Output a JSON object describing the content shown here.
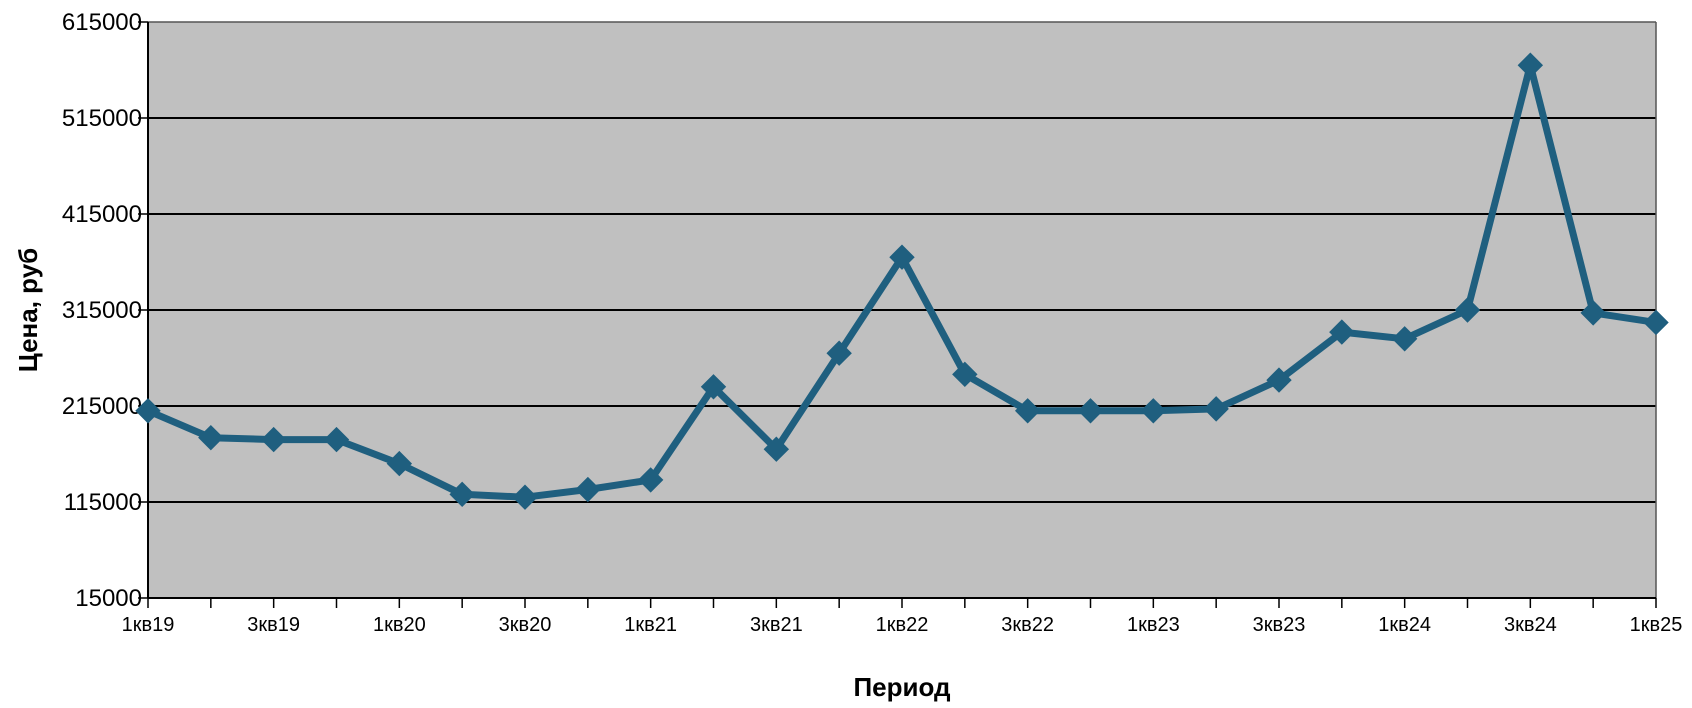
{
  "chart_data": {
    "type": "line",
    "title": "",
    "xlabel": "Период",
    "ylabel": "Цена, руб",
    "ylim": [
      15000,
      615000
    ],
    "yticks": [
      "615000",
      "515000",
      "415000",
      "315000",
      "215000",
      "115000",
      "15000"
    ],
    "xtick_labels": [
      "1кв19",
      "3кв19",
      "1кв20",
      "3кв20",
      "1кв21",
      "3кв21",
      "1кв22",
      "3кв22",
      "1кв23",
      "3кв23",
      "1кв24",
      "3кв24",
      "1кв25"
    ],
    "grid": true,
    "legend": "none",
    "series": [
      {
        "color": "#1f5f7f",
        "marker": "diamond",
        "x": [
          "1кв19",
          "2кв19",
          "3кв19",
          "4кв19",
          "1кв20",
          "2кв20",
          "3кв20",
          "4кв20",
          "1кв21",
          "2кв21",
          "3кв21",
          "4кв21",
          "1кв22",
          "2кв22",
          "3кв22",
          "4кв22",
          "1кв23",
          "2кв23",
          "3кв23",
          "4кв23",
          "1кв24",
          "2кв24",
          "3кв24",
          "4кв24",
          "1кв25"
        ],
        "values": [
          210000,
          182000,
          180000,
          180000,
          155000,
          123000,
          120000,
          128000,
          138000,
          235000,
          170000,
          270000,
          370000,
          248000,
          210000,
          210000,
          210000,
          212000,
          242000,
          292000,
          285000,
          315000,
          570000,
          312000,
          302000
        ]
      }
    ],
    "plot_background": "#c0c0c0",
    "gridline_color": "#000000"
  }
}
